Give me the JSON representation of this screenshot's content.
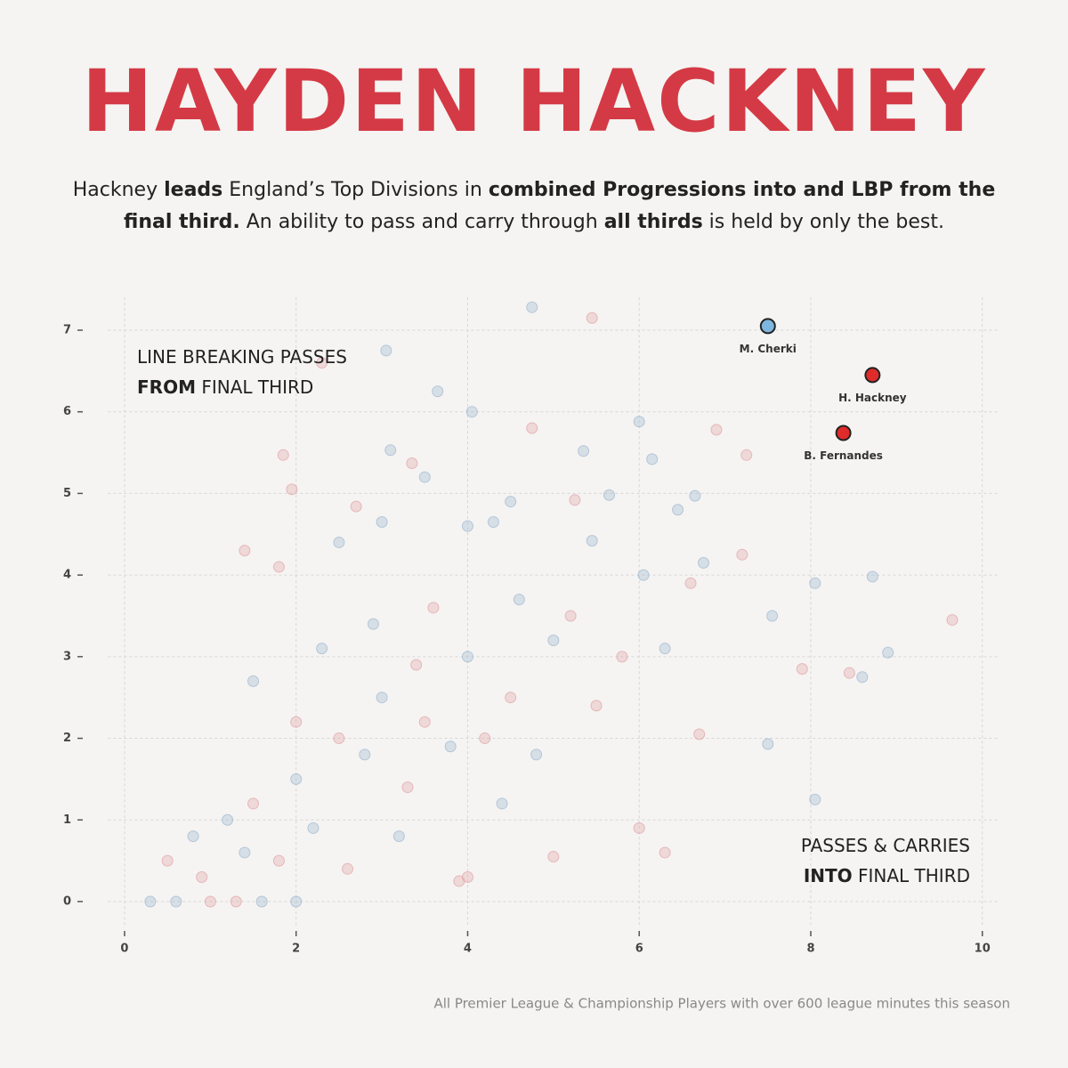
{
  "chart_data": {
    "type": "scatter",
    "title": "HAYDEN HACKNEY",
    "subtitle": [
      {
        "text": "Hackney ",
        "bold": false
      },
      {
        "text": "leads",
        "bold": true
      },
      {
        "text": " England’s Top Divisions in ",
        "bold": false
      },
      {
        "text": "combined Progressions into and LBP from the final third.",
        "bold": true
      },
      {
        "text": " An ability to pass and carry through ",
        "bold": false
      },
      {
        "text": "all thirds",
        "bold": true
      },
      {
        "text": " is held by only the best.",
        "bold": false
      }
    ],
    "y_annotation": [
      [
        {
          "text": "LINE BREAKING PASSES",
          "bold": false
        }
      ],
      [
        {
          "text": "FROM",
          "bold": true
        },
        {
          "text": " FINAL THIRD",
          "bold": false
        }
      ]
    ],
    "x_annotation": [
      [
        {
          "text": "PASSES & CARRIES",
          "bold": false
        }
      ],
      [
        {
          "text": "INTO",
          "bold": true
        },
        {
          "text": " FINAL THIRD",
          "bold": false
        }
      ]
    ],
    "footnote": "All Premier League & Championship Players with over 600 league minutes this season",
    "xlim": [
      -0.4,
      10.2
    ],
    "ylim": [
      -0.3,
      7.4
    ],
    "xticks": [
      0,
      2,
      4,
      6,
      8,
      10
    ],
    "yticks": [
      0,
      1,
      2,
      3,
      4,
      5,
      6,
      7
    ],
    "grid": true,
    "background_points": [
      {
        "color": "#9fb7d0",
        "x": [
          4.75,
          3.05,
          3.65,
          4.05,
          6.0,
          3.1,
          5.35,
          6.15,
          3.5,
          5.65,
          6.65,
          4.5,
          3.0,
          4.0,
          4.3,
          6.45,
          5.45,
          2.5,
          6.75,
          6.05,
          7.55,
          8.05,
          8.72,
          8.9,
          8.6,
          7.5,
          8.05,
          1.2,
          2.0,
          3.0,
          4.0,
          5.0,
          2.8,
          3.8,
          4.8,
          2.2,
          3.2,
          0.8,
          0.6,
          1.6,
          2.3,
          4.6,
          2.9,
          1.5,
          4.4,
          6.3,
          0.3,
          2.0,
          1.4
        ],
        "y": [
          7.28,
          6.75,
          6.25,
          6.0,
          5.88,
          5.53,
          5.52,
          5.42,
          5.2,
          4.98,
          4.97,
          4.9,
          4.65,
          4.6,
          4.65,
          4.8,
          4.42,
          4.4,
          4.15,
          4.0,
          3.5,
          3.9,
          3.98,
          3.05,
          2.75,
          1.93,
          1.25,
          1.0,
          1.5,
          2.5,
          3.0,
          3.2,
          1.8,
          1.9,
          1.8,
          0.9,
          0.8,
          0.8,
          0,
          0,
          3.1,
          3.7,
          3.4,
          2.7,
          1.2,
          3.1,
          0,
          0,
          0.6
        ]
      },
      {
        "color": "#e3a3a8",
        "x": [
          5.45,
          2.3,
          4.75,
          6.9,
          1.85,
          3.35,
          7.25,
          1.95,
          5.25,
          2.7,
          1.4,
          7.2,
          1.8,
          9.65,
          7.9,
          8.45,
          6.7,
          6.0,
          6.3,
          5.0,
          1.5,
          2.5,
          3.5,
          4.5,
          3.3,
          4.2,
          5.5,
          1.8,
          2.6,
          4.0,
          0.5,
          1.0,
          3.6,
          5.2,
          3.4,
          2.0,
          5.8,
          6.6,
          1.3,
          0.9,
          3.9
        ],
        "y": [
          7.15,
          6.6,
          5.8,
          5.78,
          5.47,
          5.37,
          5.47,
          5.05,
          4.92,
          4.84,
          4.3,
          4.25,
          4.1,
          3.45,
          2.85,
          2.8,
          2.05,
          0.9,
          0.6,
          0.55,
          1.2,
          2.0,
          2.2,
          2.5,
          1.4,
          2.0,
          2.4,
          0.5,
          0.4,
          0.3,
          0.5,
          0,
          3.6,
          3.5,
          2.9,
          2.2,
          3.0,
          3.9,
          0,
          0.3,
          0.25
        ]
      }
    ],
    "highlighted": [
      {
        "name": "M. Cherki",
        "color": "#7fb6e0",
        "x": 7.5,
        "y": 7.05
      },
      {
        "name": "H. Hackney",
        "color": "#e02b2b",
        "x": 8.72,
        "y": 6.45
      },
      {
        "name": "B. Fernandes",
        "color": "#e02b2b",
        "x": 8.38,
        "y": 5.74
      }
    ]
  }
}
